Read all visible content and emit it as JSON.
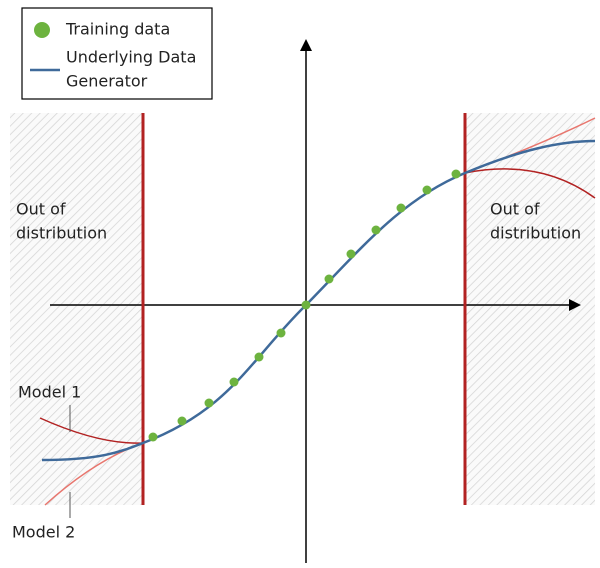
{
  "legend": {
    "items": [
      {
        "lines": [
          "Training data"
        ]
      },
      {
        "lines": [
          "Underlying Data",
          "Generator"
        ]
      }
    ]
  },
  "regions": [
    {
      "lines": [
        "Out of",
        "distribution"
      ]
    },
    {
      "lines": [
        "Out of",
        "distribution"
      ]
    }
  ],
  "models": [
    {
      "label": "Model 1"
    },
    {
      "label": "Model 2"
    }
  ]
}
